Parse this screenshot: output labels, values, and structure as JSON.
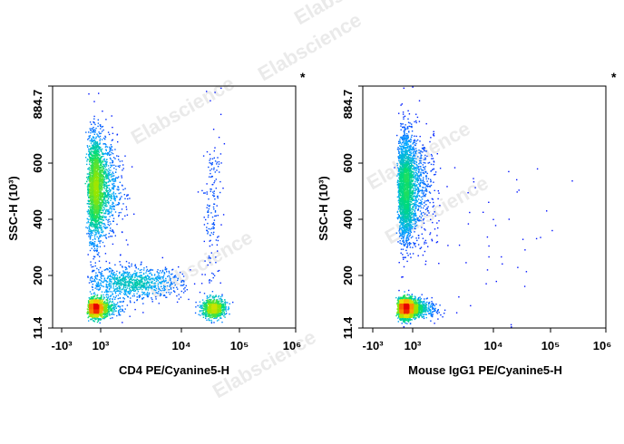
{
  "watermark_text": "Elabscience",
  "watermark_mark": "®",
  "chart_data": [
    {
      "type": "scatter",
      "subtype": "flow-cytometry density dot plot",
      "title": "",
      "corner_marker": "*",
      "xlabel": "CD4 PE/Cyanine5-H",
      "ylabel": "SSC-H",
      "ylabel_unit": "(10³)",
      "xscale": "biexponential",
      "x_ticks": [
        "-10³",
        "10³",
        "10⁴",
        "10⁵",
        "10⁶"
      ],
      "y_ticks": [
        "11.4",
        "200",
        "400",
        "600",
        "884.7"
      ],
      "xlim": [
        -1000,
        1000000
      ],
      "ylim": [
        11.4,
        884.7
      ],
      "color_scale": "blue-green-yellow-red (density)",
      "populations": [
        {
          "name": "",
          "x_center": 750,
          "y_center": 520,
          "x_spread_decades": 0.16,
          "y_sd": 95,
          "count": 2600
        },
        {
          "name": "",
          "x_center": 750,
          "y_center": 85,
          "x_spread_decades": 0.15,
          "y_sd": 17,
          "count": 1500
        },
        {
          "name": "",
          "x_center": 2500,
          "y_center": 175,
          "x_spread_decades": 0.3,
          "y_sd": 28,
          "count": 950
        },
        {
          "name": "",
          "x_center": 35000,
          "y_center": 85,
          "x_spread_decades": 0.1,
          "y_sd": 18,
          "count": 800
        },
        {
          "name": "",
          "x_center": 33000,
          "y_center": 450,
          "x_spread_decades": 0.08,
          "y_sd": 150,
          "count": 160
        }
      ]
    },
    {
      "type": "scatter",
      "subtype": "flow-cytometry density dot plot",
      "title": "",
      "corner_marker": "*",
      "xlabel": "Mouse IgG1 PE/Cyanine5-H",
      "ylabel": "SSC-H",
      "ylabel_unit": "(10³)",
      "xscale": "biexponential",
      "x_ticks": [
        "-10³",
        "10³",
        "10⁴",
        "10⁵",
        "10⁶"
      ],
      "y_ticks": [
        "11.4",
        "200",
        "400",
        "600",
        "884.7"
      ],
      "xlim": [
        -1000,
        1000000
      ],
      "ylim": [
        11.4,
        884.7
      ],
      "color_scale": "blue-green-yellow-red (density)",
      "populations": [
        {
          "name": "",
          "x_center": 750,
          "y_center": 520,
          "x_spread_decades": 0.16,
          "y_sd": 95,
          "count": 2700
        },
        {
          "name": "",
          "x_center": 750,
          "y_center": 85,
          "x_spread_decades": 0.16,
          "y_sd": 18,
          "count": 2900
        },
        {
          "name": "",
          "x_center": 8000,
          "y_center": 350,
          "x_spread_decades": 0.6,
          "y_sd": 140,
          "count": 60
        }
      ]
    }
  ]
}
